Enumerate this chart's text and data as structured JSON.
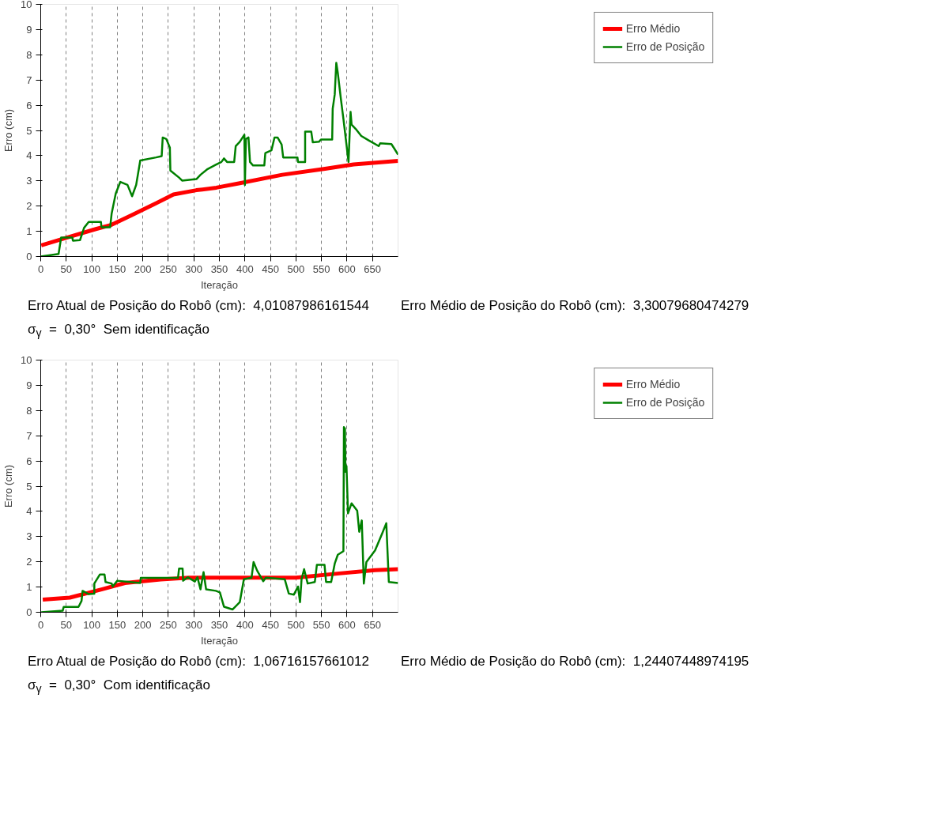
{
  "chart_data": [
    {
      "type": "line",
      "xlabel": "Iteração",
      "ylabel": "Erro (cm)",
      "xlim": [
        0,
        700
      ],
      "ylim": [
        0,
        10
      ],
      "xticks": [
        0,
        50,
        100,
        150,
        200,
        250,
        300,
        350,
        400,
        450,
        500,
        550,
        600,
        650
      ],
      "yticks": [
        0,
        1,
        2,
        3,
        4,
        5,
        6,
        7,
        8,
        9,
        10
      ],
      "grid": "x",
      "legend": "top right",
      "line_style": "solid",
      "annotations": [
        "Erro Atual de Posição do Robô (cm):   4,01087986161544",
        "Erro Médio de Posição do Robô (cm):   3,30079680474279",
        "σ$_{γ}$  =  0,30°   Sem identificação"
      ],
      "series": [
        {
          "name": "Erro Médio",
          "color": "#ff0000",
          "x": [
            1,
            51,
            108,
            139,
            178,
            220,
            260,
            305,
            344,
            388,
            473,
            557,
            613,
            700
          ],
          "values": [
            0.44,
            0.75,
            1.09,
            1.26,
            1.64,
            2.05,
            2.46,
            2.63,
            2.73,
            2.9,
            3.24,
            3.48,
            3.65,
            3.79
          ]
        },
        {
          "name": "Erro de Posição",
          "color": "#008000",
          "x": [
            0,
            35,
            40,
            62,
            63,
            77,
            85,
            94,
            118,
            119,
            136,
            139,
            147,
            156,
            170,
            179,
            187,
            195,
            226,
            237,
            239,
            246,
            253,
            254,
            271,
            277,
            305,
            313,
            327,
            343,
            354,
            359,
            365,
            379,
            382,
            390,
            399,
            400,
            402,
            407,
            410,
            416,
            438,
            440,
            452,
            458,
            464,
            472,
            475,
            503,
            504,
            518,
            518,
            530,
            533,
            545,
            549,
            571,
            572,
            576,
            579,
            582,
            588,
            593,
            603,
            607,
            609,
            617,
            628,
            642,
            662,
            665,
            687,
            693,
            700
          ],
          "values": [
            0,
            0.1,
            0.75,
            0.75,
            0.63,
            0.65,
            1.14,
            1.37,
            1.37,
            1.16,
            1.16,
            1.71,
            2.5,
            2.96,
            2.84,
            2.39,
            2.84,
            3.81,
            3.93,
            3.98,
            4.72,
            4.66,
            4.32,
            3.41,
            3.13,
            3.01,
            3.07,
            3.24,
            3.47,
            3.64,
            3.75,
            3.89,
            3.75,
            3.75,
            4.38,
            4.55,
            4.83,
            2.84,
            4.66,
            4.72,
            3.75,
            3.61,
            3.61,
            4.1,
            4.21,
            4.72,
            4.72,
            4.44,
            3.93,
            3.93,
            3.75,
            3.75,
            4.95,
            4.95,
            4.53,
            4.55,
            4.64,
            4.64,
            5.86,
            6.43,
            7.68,
            7.28,
            6.26,
            5.46,
            3.75,
            5.74,
            5.23,
            5.06,
            4.78,
            4.61,
            4.38,
            4.49,
            4.46,
            4.27,
            4.04
          ]
        }
      ]
    },
    {
      "type": "line",
      "xlabel": "Iteração",
      "ylabel": "Erro (cm)",
      "xlim": [
        0,
        700
      ],
      "ylim": [
        0,
        10
      ],
      "xticks": [
        0,
        50,
        100,
        150,
        200,
        250,
        300,
        350,
        400,
        450,
        500,
        550,
        600,
        650
      ],
      "yticks": [
        0,
        1,
        2,
        3,
        4,
        5,
        6,
        7,
        8,
        9,
        10
      ],
      "grid": "x",
      "legend": "top right",
      "line_style": "solid",
      "annotations": [
        "Erro Atual de Posição do Robô (cm):   1,06716157661012",
        "Erro Médio de Posição do Robô (cm):   1,24407448974195",
        "σ$_{γ}$  =  0,30°   Com identificação"
      ],
      "series": [
        {
          "name": "Erro Médio",
          "color": "#ff0000",
          "x": [
            4,
            57,
            122,
            165,
            235,
            291,
            359,
            500,
            585,
            655,
            700
          ],
          "values": [
            0.5,
            0.58,
            0.92,
            1.16,
            1.3,
            1.37,
            1.37,
            1.37,
            1.54,
            1.67,
            1.71
          ]
        },
        {
          "name": "Erro de Posição",
          "color": "#008000",
          "x": [
            1,
            43,
            45,
            74,
            80,
            82,
            94,
            105,
            105,
            116,
            125,
            127,
            139,
            141,
            150,
            195,
            196,
            208,
            269,
            271,
            278,
            279,
            288,
            302,
            307,
            313,
            319,
            324,
            343,
            351,
            359,
            376,
            390,
            398,
            413,
            417,
            424,
            436,
            441,
            478,
            486,
            496,
            504,
            508,
            511,
            516,
            523,
            537,
            541,
            556,
            559,
            569,
            576,
            582,
            593,
            594,
            596,
            597,
            599,
            602,
            609,
            620,
            624,
            629,
            633,
            638,
            655,
            669,
            677,
            682,
            700
          ],
          "values": [
            0,
            0.06,
            0.21,
            0.21,
            0.45,
            0.85,
            0.72,
            0.74,
            1.14,
            1.5,
            1.5,
            1.2,
            1.14,
            1.02,
            1.25,
            1.16,
            1.36,
            1.36,
            1.36,
            1.73,
            1.73,
            1.25,
            1.39,
            1.22,
            1.39,
            0.91,
            1.59,
            0.91,
            0.85,
            0.79,
            0.22,
            0.11,
            0.4,
            1.31,
            1.37,
            1.99,
            1.65,
            1.23,
            1.37,
            1.31,
            0.74,
            0.7,
            1.02,
            0.4,
            1.31,
            1.71,
            1.14,
            1.2,
            1.88,
            1.88,
            1.2,
            1.2,
            1.93,
            2.28,
            2.42,
            7.34,
            7.28,
            5.57,
            5.8,
            3.92,
            4.32,
            4.03,
            3.19,
            3.64,
            1.14,
            1.99,
            2.45,
            3.13,
            3.53,
            1.2,
            1.16
          ]
        }
      ]
    }
  ]
}
